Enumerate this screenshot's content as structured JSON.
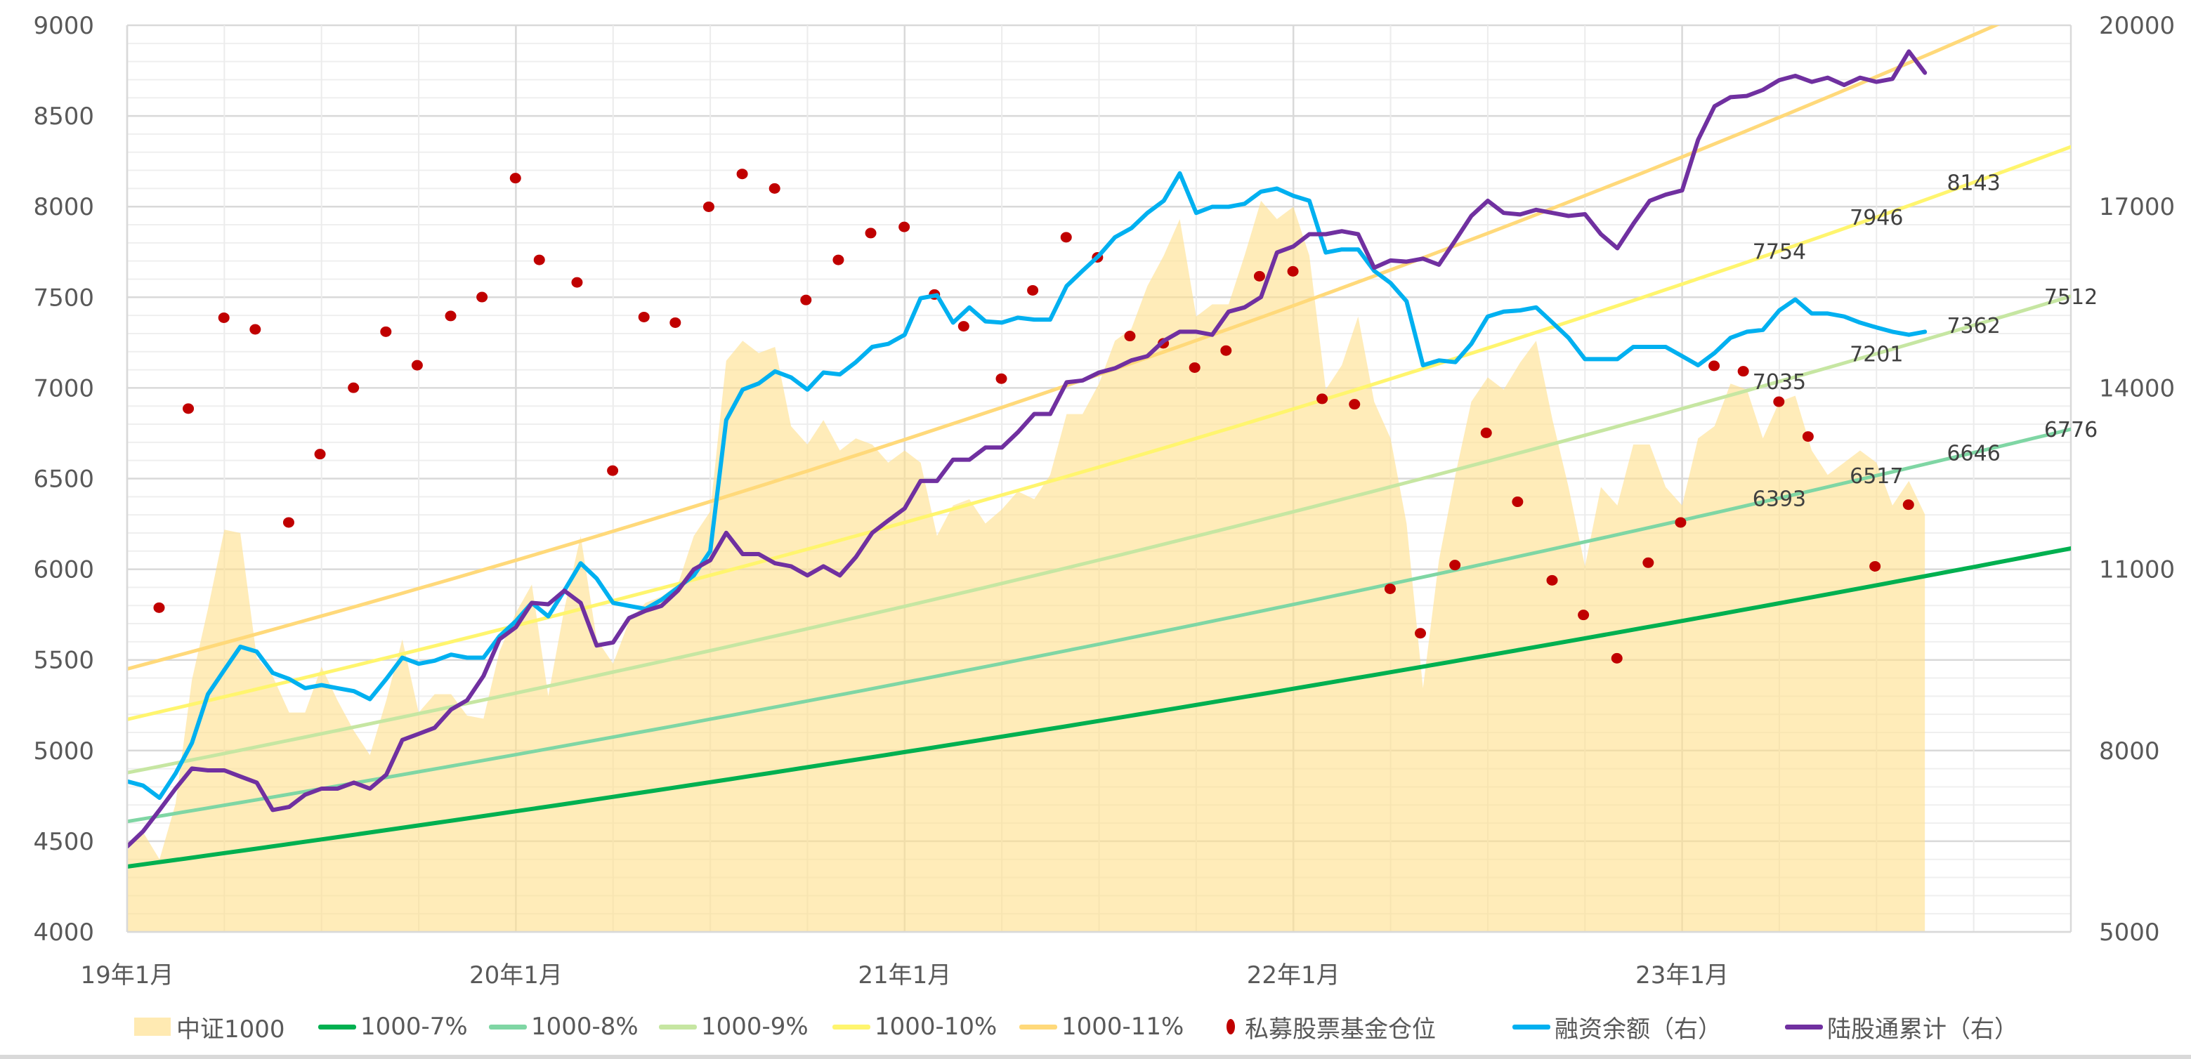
{
  "chart_data": {
    "type": "area+line+scatter",
    "title": "",
    "x_range": [
      "2019-01-01",
      "2024-01-01"
    ],
    "x_ticks": [
      {
        "date": "2019-01-01",
        "label": "19年1月"
      },
      {
        "date": "2020-01-01",
        "label": "20年1月"
      },
      {
        "date": "2021-01-01",
        "label": "21年1月"
      },
      {
        "date": "2022-01-01",
        "label": "22年1月"
      },
      {
        "date": "2023-01-01",
        "label": "23年1月"
      }
    ],
    "y_left": {
      "min": 4000,
      "max": 9000,
      "step": 500,
      "minor_step": 100
    },
    "y_right": {
      "min": 5000,
      "max": 20000,
      "step": 3000
    },
    "grid": true,
    "legend": "bottom",
    "colors": {
      "area": "#ffe08a",
      "g7": "#00b050",
      "g8": "#7fd6a4",
      "g9": "#c6e6a2",
      "g10": "#fff56e",
      "g11": "#ffd97a",
      "scatter": "#c00000",
      "margin": "#00b0f0",
      "northbound": "#7030a0"
    },
    "dates": [
      "2019-01-01",
      "2019-01-16",
      "2019-02-01",
      "2019-02-16",
      "2019-03-01",
      "2019-03-16",
      "2019-04-01",
      "2019-04-16",
      "2019-05-01",
      "2019-05-16",
      "2019-06-01",
      "2019-06-16",
      "2019-07-01",
      "2019-07-16",
      "2019-08-01",
      "2019-08-16",
      "2019-09-01",
      "2019-09-16",
      "2019-10-01",
      "2019-10-16",
      "2019-11-01",
      "2019-11-16",
      "2019-12-01",
      "2019-12-16",
      "2020-01-01",
      "2020-01-16",
      "2020-02-01",
      "2020-02-16",
      "2020-03-01",
      "2020-03-16",
      "2020-04-01",
      "2020-04-16",
      "2020-05-01",
      "2020-05-16",
      "2020-06-01",
      "2020-06-16",
      "2020-07-01",
      "2020-07-16",
      "2020-08-01",
      "2020-08-16",
      "2020-09-01",
      "2020-09-16",
      "2020-10-01",
      "2020-10-16",
      "2020-11-01",
      "2020-11-16",
      "2020-12-01",
      "2020-12-16",
      "2021-01-01",
      "2021-01-16",
      "2021-02-01",
      "2021-02-16",
      "2021-03-01",
      "2021-03-16",
      "2021-04-01",
      "2021-04-16",
      "2021-05-01",
      "2021-05-16",
      "2021-06-01",
      "2021-06-16",
      "2021-07-01",
      "2021-07-16",
      "2021-08-01",
      "2021-08-16",
      "2021-09-01",
      "2021-09-16",
      "2021-10-01",
      "2021-10-16",
      "2021-11-01",
      "2021-11-16",
      "2021-12-01",
      "2021-12-16",
      "2022-01-01",
      "2022-01-16",
      "2022-02-01",
      "2022-02-16",
      "2022-03-01",
      "2022-03-16",
      "2022-04-01",
      "2022-04-16",
      "2022-05-01",
      "2022-05-16",
      "2022-06-01",
      "2022-06-16",
      "2022-07-01",
      "2022-07-16",
      "2022-08-01",
      "2022-08-16",
      "2022-09-01",
      "2022-09-16",
      "2022-10-01",
      "2022-10-16",
      "2022-11-01",
      "2022-11-16",
      "2022-12-01",
      "2022-12-16",
      "2023-01-01",
      "2023-01-16",
      "2023-02-01",
      "2023-02-16",
      "2023-03-01",
      "2023-03-16",
      "2023-04-01",
      "2023-04-16",
      "2023-05-01",
      "2023-05-16",
      "2023-06-01",
      "2023-06-16",
      "2023-07-01",
      "2023-07-16",
      "2023-08-01",
      "2023-08-16"
    ],
    "series": [
      {
        "name": "中证1000",
        "type": "area",
        "axis": "left",
        "color_key": "area",
        "values": [
          4450,
          4550,
          4400,
          4706,
          5390,
          5781,
          6218,
          6200,
          5512,
          5410,
          5210,
          5210,
          5462,
          5277,
          5109,
          4975,
          5277,
          5613,
          5210,
          5311,
          5311,
          5193,
          5176,
          5546,
          5760,
          5916,
          5300,
          5780,
          6184,
          5613,
          5479,
          5714,
          5815,
          5848,
          5916,
          6184,
          6319,
          7150,
          7260,
          7192,
          7226,
          6789,
          6688,
          6823,
          6655,
          6722,
          6688,
          6588,
          6655,
          6588,
          6184,
          6352,
          6386,
          6252,
          6330,
          6430,
          6386,
          6520,
          6856,
          6856,
          7024,
          7260,
          7327,
          7562,
          7730,
          7931,
          7394,
          7461,
          7461,
          7730,
          8032,
          7931,
          7999,
          7730,
          6991,
          7125,
          7394,
          6924,
          6722,
          6252,
          5344,
          6050,
          6520,
          6924,
          7058,
          6991,
          7140,
          7260,
          6823,
          6453,
          6016,
          6453,
          6352,
          6688,
          6688,
          6453,
          6352,
          6722,
          6789,
          7024,
          6991,
          6722,
          6924,
          6957,
          6655,
          6520,
          6588,
          6655,
          6588,
          6352,
          6487,
          6302
        ]
      },
      {
        "name": "融资余额（右）",
        "type": "line",
        "axis": "right",
        "color_key": "margin",
        "values": [
          7491,
          7420,
          7218,
          7621,
          8126,
          8932,
          9335,
          9718,
          9637,
          9285,
          9185,
          9033,
          9083,
          9033,
          8983,
          8852,
          9185,
          9537,
          9436,
          9487,
          9587,
          9537,
          9537,
          9890,
          10142,
          10444,
          10220,
          10646,
          11099,
          10847,
          10444,
          10394,
          10343,
          10494,
          10696,
          10898,
          11301,
          13468,
          13972,
          14073,
          14274,
          14174,
          13972,
          14254,
          14224,
          14426,
          14678,
          14728,
          14879,
          15484,
          15534,
          15081,
          15333,
          15101,
          15081,
          15162,
          15131,
          15131,
          15686,
          15938,
          16190,
          16492,
          16643,
          16895,
          17097,
          17551,
          16895,
          16996,
          16996,
          17047,
          17248,
          17299,
          17178,
          17097,
          16240,
          16291,
          16291,
          15938,
          15736,
          15434,
          14375,
          14456,
          14426,
          14728,
          15182,
          15262,
          15283,
          15333,
          15081,
          14829,
          14476,
          14476,
          14476,
          14678,
          14678,
          14678,
          14526,
          14375,
          14577,
          14829,
          14930,
          14960,
          15283,
          15464,
          15232,
          15232,
          15182,
          15081,
          15000,
          14930,
          14879,
          14930
        ]
      },
      {
        "name": "陆股通累计（右）",
        "type": "line",
        "axis": "right",
        "color_key": "northbound",
        "values": [
          6412,
          6664,
          7017,
          7370,
          7702,
          7672,
          7672,
          7571,
          7470,
          7017,
          7067,
          7269,
          7370,
          7370,
          7470,
          7370,
          7602,
          8176,
          8277,
          8378,
          8680,
          8832,
          9235,
          9840,
          10041,
          10444,
          10420,
          10646,
          10444,
          9738,
          9789,
          10192,
          10313,
          10394,
          10646,
          10999,
          11150,
          11603,
          11251,
          11251,
          11099,
          11049,
          10898,
          11049,
          10898,
          11200,
          11603,
          11805,
          12006,
          12460,
          12460,
          12813,
          12813,
          13014,
          13014,
          13266,
          13569,
          13569,
          14093,
          14123,
          14254,
          14325,
          14456,
          14526,
          14779,
          14930,
          14930,
          14879,
          15262,
          15333,
          15504,
          16240,
          16341,
          16543,
          16543,
          16593,
          16543,
          15988,
          16109,
          16089,
          16139,
          16038,
          16442,
          16845,
          17097,
          16895,
          16870,
          16946,
          16895,
          16845,
          16875,
          16543,
          16311,
          16714,
          17097,
          17198,
          17268,
          18105,
          18659,
          18810,
          18831,
          18931,
          19093,
          19163,
          19063,
          19133,
          19012,
          19133,
          19063,
          19113,
          19567,
          19214
        ]
      }
    ],
    "growth_lines": [
      {
        "name": "1000-7%",
        "color_key": "g7",
        "start_date": "2019-01-01",
        "start_value": 4360,
        "annual_rate": 0.07,
        "labels": []
      },
      {
        "name": "1000-8%",
        "color_key": "g8",
        "start_date": "2019-01-01",
        "start_value": 4609,
        "annual_rate": 0.08,
        "labels": [
          {
            "date": "2023-04-01",
            "text": "6393"
          },
          {
            "date": "2023-07-01",
            "text": "6517"
          },
          {
            "date": "2023-10-01",
            "text": "6646"
          },
          {
            "date": "2024-01-01",
            "text": "6776"
          }
        ]
      },
      {
        "name": "1000-9%",
        "color_key": "g9",
        "start_date": "2019-01-01",
        "start_value": 4878,
        "annual_rate": 0.09,
        "labels": [
          {
            "date": "2023-04-01",
            "text": "7035"
          },
          {
            "date": "2023-07-01",
            "text": "7201"
          },
          {
            "date": "2023-10-01",
            "text": "7362"
          },
          {
            "date": "2024-01-01",
            "text": "7512"
          }
        ]
      },
      {
        "name": "1000-10%",
        "color_key": "g10",
        "start_date": "2019-01-01",
        "start_value": 5172,
        "annual_rate": 0.1,
        "labels": [
          {
            "date": "2023-04-01",
            "text": "7754"
          },
          {
            "date": "2023-07-01",
            "text": "7946"
          },
          {
            "date": "2023-10-01",
            "text": "8143"
          }
        ]
      },
      {
        "name": "1000-11%",
        "color_key": "g11",
        "start_date": "2019-01-01",
        "start_value": 5450,
        "annual_rate": 0.11,
        "labels": []
      }
    ],
    "scatter": {
      "name": "私募股票基金仓位",
      "axis": "left",
      "color_key": "scatter",
      "points": [
        [
          "2019-01-31",
          5788
        ],
        [
          "2019-02-28",
          6886
        ],
        [
          "2019-03-31",
          7387
        ],
        [
          "2019-04-30",
          7323
        ],
        [
          "2019-05-31",
          6258
        ],
        [
          "2019-06-30",
          6635
        ],
        [
          "2019-07-31",
          7001
        ],
        [
          "2019-08-31",
          7310
        ],
        [
          "2019-09-30",
          7125
        ],
        [
          "2019-10-31",
          7397
        ],
        [
          "2019-11-30",
          7501
        ],
        [
          "2019-12-31",
          8157
        ],
        [
          "2020-01-23",
          7706
        ],
        [
          "2020-02-28",
          7582
        ],
        [
          "2020-03-31",
          6544
        ],
        [
          "2020-04-30",
          7391
        ],
        [
          "2020-05-29",
          7360
        ],
        [
          "2020-06-30",
          7999
        ],
        [
          "2020-07-31",
          8180
        ],
        [
          "2020-08-31",
          8100
        ],
        [
          "2020-09-30",
          7485
        ],
        [
          "2020-10-30",
          7706
        ],
        [
          "2020-11-30",
          7854
        ],
        [
          "2020-12-31",
          7888
        ],
        [
          "2021-01-29",
          7515
        ],
        [
          "2021-02-26",
          7340
        ],
        [
          "2021-03-31",
          7051
        ],
        [
          "2021-04-30",
          7538
        ],
        [
          "2021-05-31",
          7831
        ],
        [
          "2021-06-30",
          7720
        ],
        [
          "2021-07-30",
          7286
        ],
        [
          "2021-08-31",
          7246
        ],
        [
          "2021-09-30",
          7112
        ],
        [
          "2021-10-29",
          7206
        ],
        [
          "2021-11-30",
          7616
        ],
        [
          "2021-12-31",
          7643
        ],
        [
          "2022-01-28",
          6940
        ],
        [
          "2022-02-28",
          6910
        ],
        [
          "2022-03-31",
          5892
        ],
        [
          "2022-04-29",
          5647
        ],
        [
          "2022-05-31",
          6023
        ],
        [
          "2022-06-30",
          6752
        ],
        [
          "2022-07-29",
          6372
        ],
        [
          "2022-08-31",
          5939
        ],
        [
          "2022-09-30",
          5748
        ],
        [
          "2022-10-31",
          5509
        ],
        [
          "2022-11-30",
          6036
        ],
        [
          "2022-12-30",
          6258
        ],
        [
          "2023-01-31",
          7122
        ],
        [
          "2023-02-28",
          7092
        ],
        [
          "2023-03-31",
          6924
        ],
        [
          "2023-04-28",
          6732
        ],
        [
          "2023-06-30",
          6016
        ],
        [
          "2023-07-31",
          6356
        ]
      ]
    }
  },
  "legend": {
    "items": [
      "中证1000",
      "1000-7%",
      "1000-8%",
      "1000-9%",
      "1000-10%",
      "1000-11%",
      "私募股票基金仓位",
      "融资余额（右）",
      "陆股通累计（右）"
    ]
  }
}
